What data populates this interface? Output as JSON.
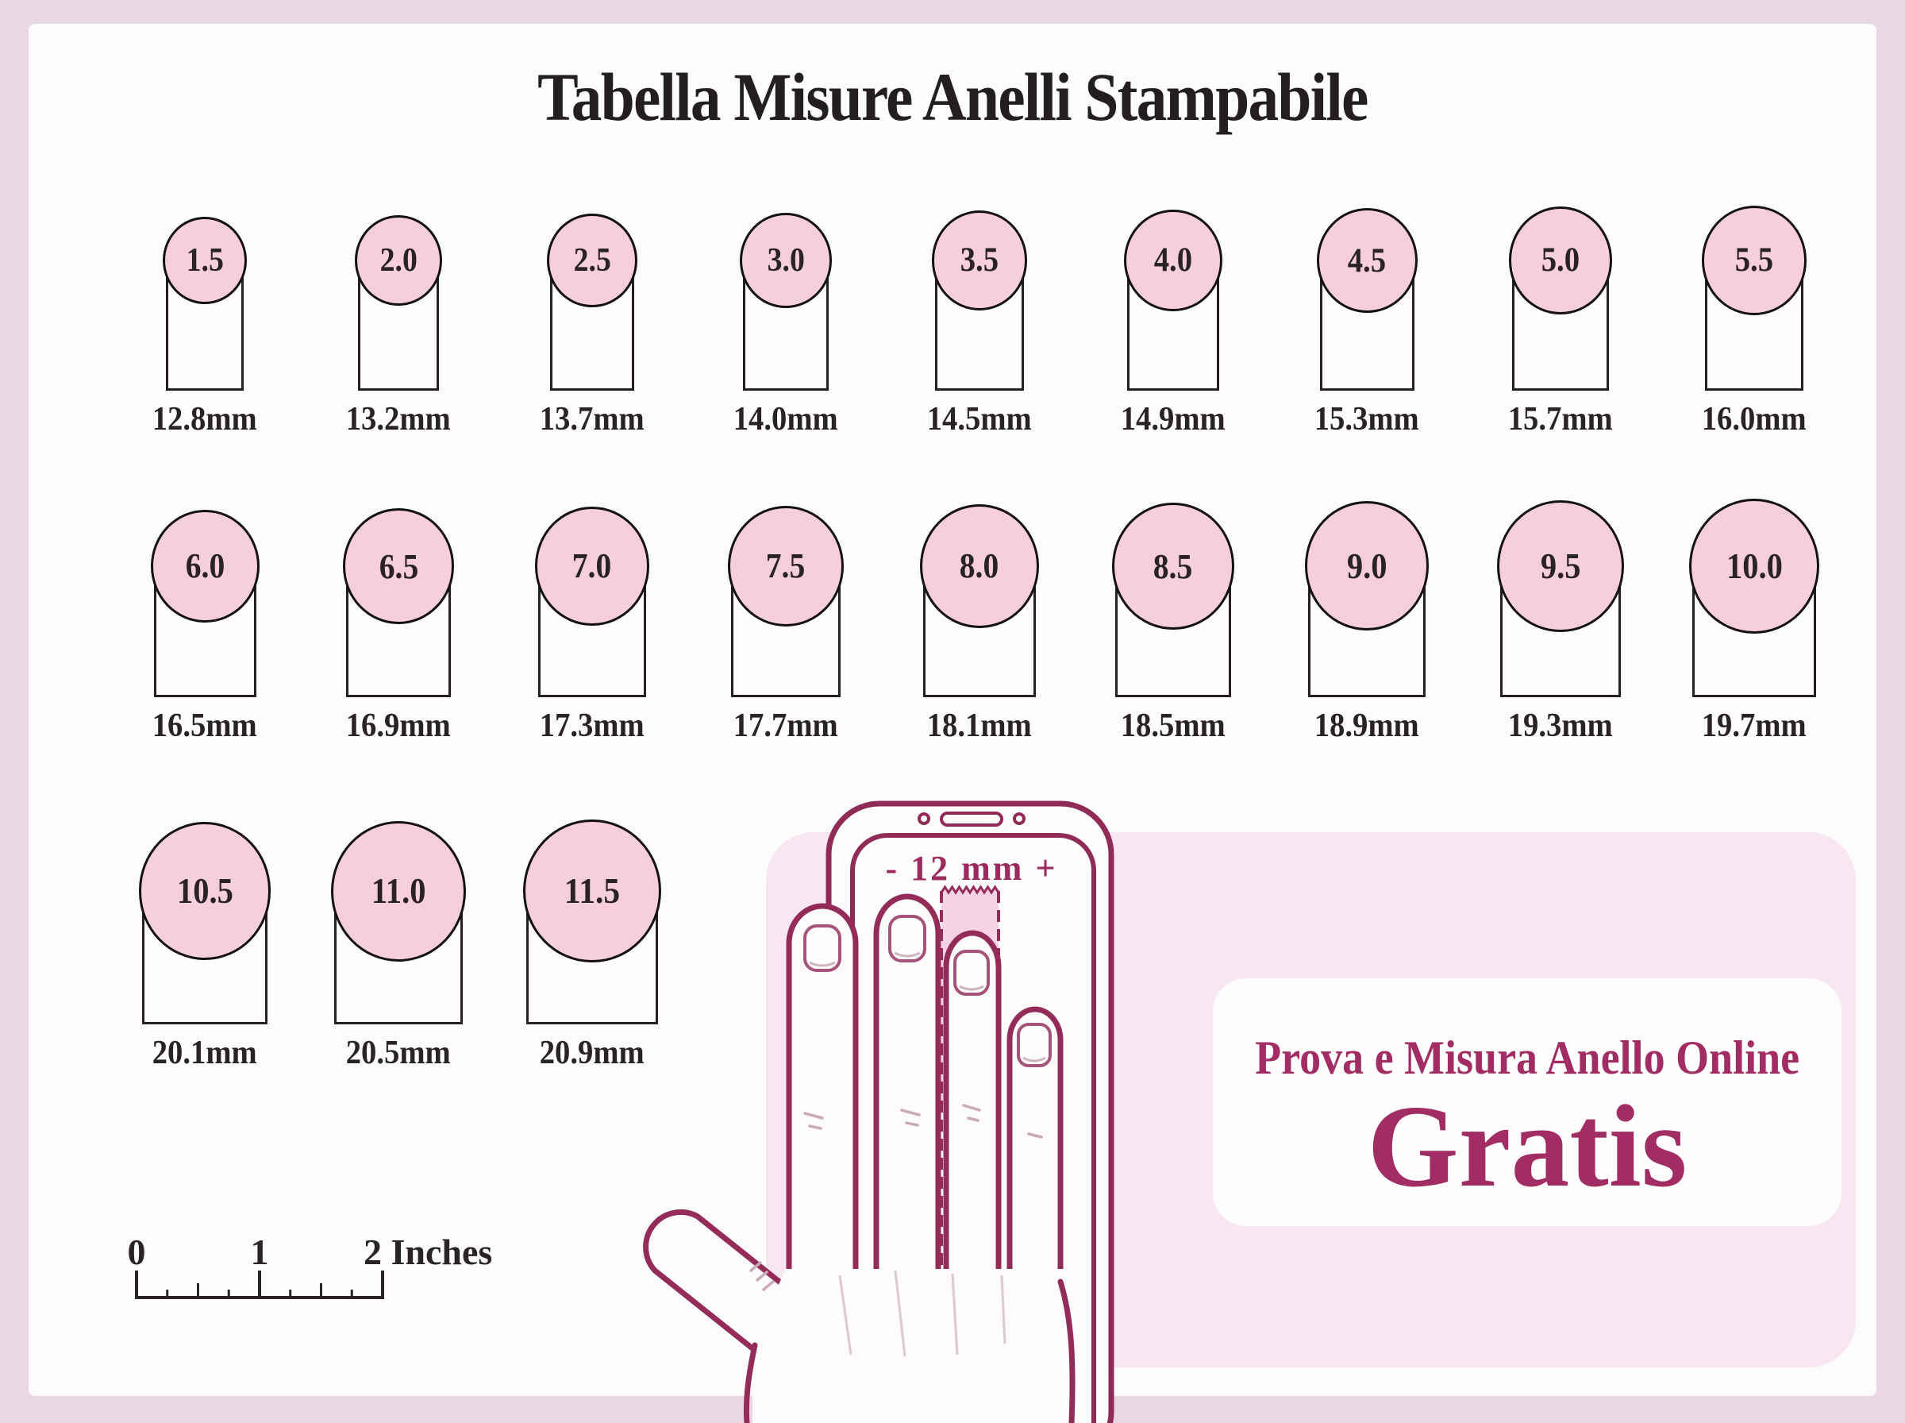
{
  "title": "Tabella Misure Anelli Stampabile",
  "size_rows": [
    {
      "cells": [
        {
          "size": "1.5",
          "diameter_mm": "12.8mm"
        },
        {
          "size": "2.0",
          "diameter_mm": "13.2mm"
        },
        {
          "size": "2.5",
          "diameter_mm": "13.7mm"
        },
        {
          "size": "3.0",
          "diameter_mm": "14.0mm"
        },
        {
          "size": "3.5",
          "diameter_mm": "14.5mm"
        },
        {
          "size": "4.0",
          "diameter_mm": "14.9mm"
        },
        {
          "size": "4.5",
          "diameter_mm": "15.3mm"
        },
        {
          "size": "5.0",
          "diameter_mm": "15.7mm"
        },
        {
          "size": "5.5",
          "diameter_mm": "16.0mm"
        }
      ]
    },
    {
      "cells": [
        {
          "size": "6.0",
          "diameter_mm": "16.5mm"
        },
        {
          "size": "6.5",
          "diameter_mm": "16.9mm"
        },
        {
          "size": "7.0",
          "diameter_mm": "17.3mm"
        },
        {
          "size": "7.5",
          "diameter_mm": "17.7mm"
        },
        {
          "size": "8.0",
          "diameter_mm": "18.1mm"
        },
        {
          "size": "8.5",
          "diameter_mm": "18.5mm"
        },
        {
          "size": "9.0",
          "diameter_mm": "18.9mm"
        },
        {
          "size": "9.5",
          "diameter_mm": "19.3mm"
        },
        {
          "size": "10.0",
          "diameter_mm": "19.7mm"
        }
      ]
    },
    {
      "cells": [
        {
          "size": "10.5",
          "diameter_mm": "20.1mm"
        },
        {
          "size": "11.0",
          "diameter_mm": "20.5mm"
        },
        {
          "size": "11.5",
          "diameter_mm": "20.9mm"
        }
      ]
    }
  ],
  "measure_tool": {
    "label": "-  12 mm +"
  },
  "promo": {
    "line1": "Prova e Misura Anello Online",
    "line2": "Gratis"
  },
  "ruler": {
    "tick_labels": [
      "0",
      "1",
      "2 Inches"
    ]
  },
  "colors": {
    "accent_maroon": "#942c5a",
    "promo_text": "#a12d64",
    "circle_pink": "#f6cede",
    "panel_pink": "#f8e7f0",
    "strip_pink": "#f8d3e3",
    "page_bg": "#e9d7e3",
    "ink": "#2b2426"
  }
}
